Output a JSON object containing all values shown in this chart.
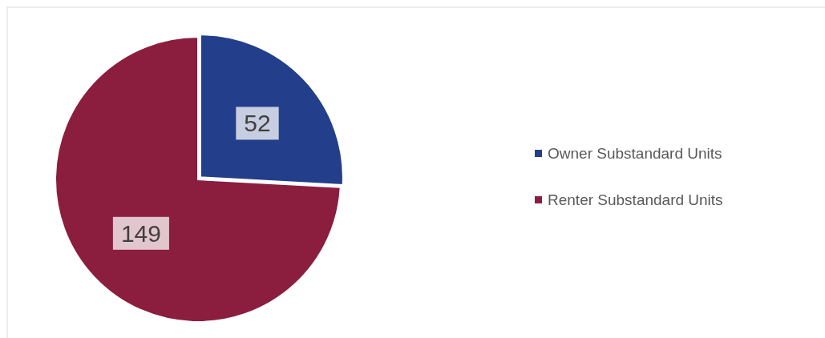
{
  "chart_data": {
    "type": "pie",
    "categories": [
      "Owner Substandard Units",
      "Renter Substandard Units"
    ],
    "values": [
      52,
      149
    ],
    "colors": [
      "#233e8b",
      "#8b1e3f"
    ],
    "data_labels": true,
    "legend": "right"
  }
}
